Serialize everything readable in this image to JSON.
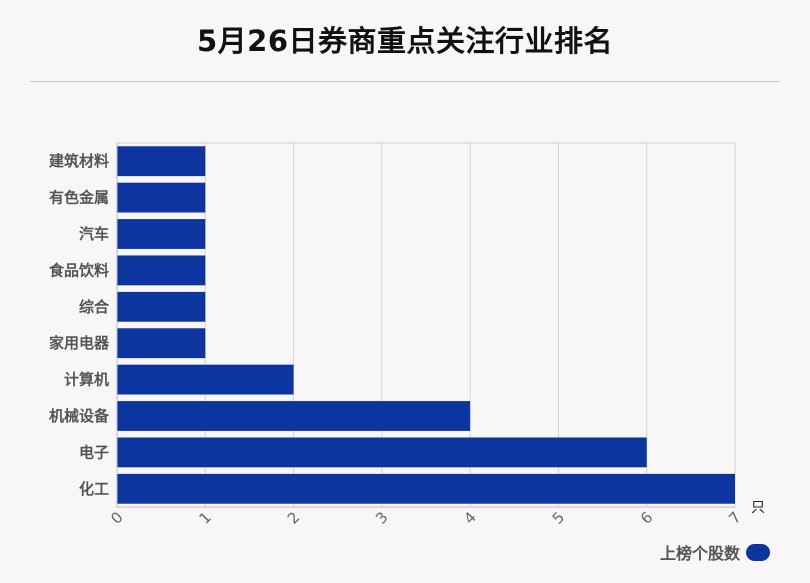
{
  "title": "5月26日券商重点关注行业排名",
  "chart_data": {
    "type": "bar",
    "orientation": "horizontal",
    "categories": [
      "建筑材料",
      "有色金属",
      "汽车",
      "食品饮料",
      "综合",
      "家用电器",
      "计算机",
      "机械设备",
      "电子",
      "化工"
    ],
    "series": [
      {
        "name": "上榜个股数",
        "values": [
          1,
          1,
          1,
          1,
          1,
          1,
          2,
          4,
          6,
          7
        ]
      }
    ],
    "xlim": [
      0,
      7
    ],
    "xticks": [
      "0",
      "1",
      "2",
      "3",
      "4",
      "5",
      "6",
      "7"
    ],
    "x_unit": "只",
    "grid": true,
    "legend_position": "bottom-right",
    "bar_color": "#0c35a0"
  }
}
